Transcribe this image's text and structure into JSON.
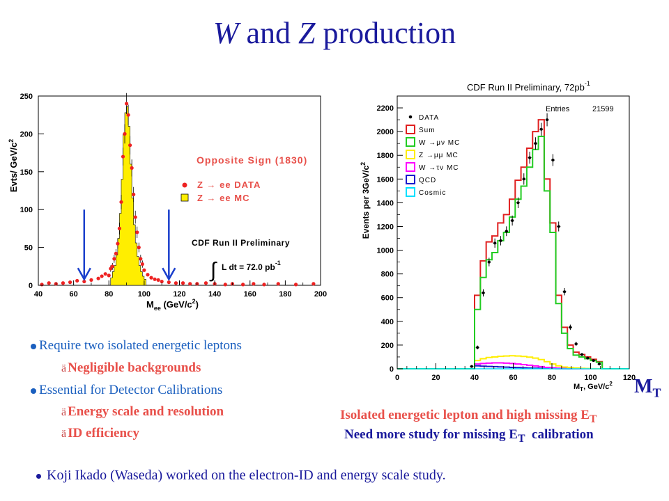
{
  "slide": {
    "title_italic_1": "W",
    "title_mid": " and ",
    "title_italic_2": "Z",
    "title_end": " production"
  },
  "bullets": {
    "b1": "Require two isolated energetic leptons",
    "b1_sub": "Negligible backgrounds",
    "b2": "Essential for Detector Calibrations",
    "b2_sub1": "Energy scale and resolution",
    "b2_sub2": "ID efficiency",
    "sub_glyph": "ä"
  },
  "right_notes": {
    "line1": "Isolated energetic lepton and high missing E",
    "line1_sub": "T",
    "line2a": "Need more study for missing E",
    "line2_sub": "T",
    "line2b": "  calibration",
    "mt_main": "M",
    "mt_sub": "T"
  },
  "footer": "Koji Ikado (Waseda) worked on the electron-ID and energy scale study.",
  "colors": {
    "blue": "#1a1a9c",
    "lightblue": "#1a5fbf",
    "red": "#e8504a",
    "yellow": "#ffee00",
    "arrow": "#1a3fcc"
  },
  "chart_data": [
    {
      "type": "bar",
      "ylabel": "Evts/ GeV/c",
      "ylabel_sup": "2",
      "xlabel_main": "M",
      "xlabel_sub": "ee",
      "xlabel_rest": " (GeV/c",
      "xlabel_sup": "2",
      "xlabel_end": ")",
      "xlim": [
        40,
        200
      ],
      "ylim": [
        0,
        250
      ],
      "xticks": [
        40,
        60,
        80,
        100,
        120,
        140,
        160,
        180,
        200
      ],
      "yticks": [
        0,
        50,
        100,
        150,
        200,
        250
      ],
      "legend_title": "Opposite Sign (1830)",
      "legend": [
        {
          "name": "Z → ee DATA",
          "marker": "red-dot"
        },
        {
          "name": "Z → ee  MC",
          "marker": "yellow-box"
        }
      ],
      "annot1": "CDF Run II Preliminary",
      "annot2_int": "∫",
      "annot2": "L dt = 72.0 pb",
      "annot2_sup": "-1",
      "arrows_at_x": [
        66,
        114
      ],
      "mc_hist": {
        "bin_width": 1,
        "x": [
          81,
          82,
          83,
          84,
          85,
          86,
          87,
          88,
          89,
          90,
          91,
          92,
          93,
          94,
          95,
          96,
          97,
          98,
          99,
          100
        ],
        "values": [
          10,
          18,
          26,
          40,
          62,
          95,
          140,
          200,
          228,
          236,
          210,
          160,
          115,
          80,
          56,
          38,
          26,
          18,
          12,
          8
        ]
      },
      "data_points": {
        "x": [
          42,
          46,
          50,
          54,
          58,
          62,
          66,
          70,
          74,
          76,
          78,
          80,
          81,
          82,
          83,
          84,
          85,
          86,
          87,
          88,
          89,
          90,
          91,
          92,
          93,
          94,
          95,
          96,
          97,
          98,
          99,
          100,
          102,
          104,
          106,
          108,
          110,
          114,
          118,
          122,
          126,
          130,
          135,
          140,
          146,
          150,
          156,
          162,
          168,
          176,
          186,
          196
        ],
        "values": [
          1,
          3,
          2,
          3,
          4,
          6,
          5,
          7,
          9,
          12,
          15,
          13,
          22,
          25,
          35,
          42,
          55,
          75,
          110,
          170,
          200,
          240,
          225,
          185,
          155,
          120,
          90,
          70,
          50,
          35,
          28,
          20,
          14,
          10,
          8,
          7,
          5,
          4,
          3,
          3,
          2,
          2,
          3,
          2,
          1,
          2,
          1,
          2,
          1,
          2,
          1,
          2
        ]
      }
    },
    {
      "type": "bar",
      "title": "CDF Run II Preliminary, 72pb",
      "title_sup": "-1",
      "ylabel": "Events per 3GeV/c",
      "ylabel_sup": "2",
      "xlabel": "M",
      "xlabel_sub": "T",
      "xlabel_rest": ", GeV/c",
      "xlabel_sup": "2",
      "stats_label": "Entries",
      "stats_value": "21599",
      "xlim": [
        0,
        120
      ],
      "ylim": [
        0,
        2300
      ],
      "xticks": [
        0,
        20,
        40,
        60,
        80,
        100,
        120
      ],
      "yticks": [
        0,
        200,
        400,
        600,
        800,
        1000,
        1200,
        1400,
        1600,
        1800,
        2000,
        2200
      ],
      "legend": [
        {
          "name": "DATA",
          "color": "#000000",
          "marker": "dot"
        },
        {
          "name": "Sum",
          "color": "#e02020",
          "marker": "box"
        },
        {
          "name": "W →μν MC",
          "color": "#22cc22",
          "marker": "box"
        },
        {
          "name": "Z →μμ MC",
          "color": "#ffee00",
          "marker": "box"
        },
        {
          "name": "W →τν MC",
          "color": "#ff00ff",
          "marker": "box"
        },
        {
          "name": "QCD",
          "color": "#1a1acc",
          "marker": "box"
        },
        {
          "name": "Cosmic",
          "color": "#00e0ff",
          "marker": "box"
        }
      ],
      "bin_edges": [
        40,
        43,
        46,
        49,
        52,
        55,
        58,
        61,
        64,
        67,
        70,
        73,
        76,
        79,
        82,
        85,
        88,
        91,
        94,
        97,
        100,
        103,
        106
      ],
      "series": [
        {
          "name": "Sum",
          "values": [
            620,
            910,
            1070,
            1120,
            1230,
            1300,
            1430,
            1590,
            1700,
            1860,
            2000,
            2100,
            1600,
            1230,
            620,
            350,
            200,
            140,
            120,
            100,
            80,
            60
          ]
        },
        {
          "name": "W →μν MC",
          "values": [
            500,
            770,
            920,
            980,
            1080,
            1150,
            1280,
            1430,
            1540,
            1700,
            1850,
            1960,
            1500,
            1150,
            550,
            300,
            170,
            115,
            100,
            85,
            70,
            55
          ]
        },
        {
          "name": "Z →μμ MC",
          "values": [
            70,
            85,
            95,
            100,
            105,
            108,
            110,
            108,
            104,
            98,
            90,
            78,
            60,
            40,
            25,
            15,
            10,
            6,
            4,
            2,
            1,
            0
          ]
        },
        {
          "name": "W →τν MC",
          "values": [
            40,
            45,
            48,
            50,
            50,
            48,
            45,
            40,
            35,
            30,
            24,
            18,
            12,
            8,
            5,
            3,
            2,
            1,
            0,
            0,
            0,
            0
          ]
        },
        {
          "name": "QCD",
          "values": [
            25,
            22,
            20,
            18,
            16,
            14,
            12,
            10,
            8,
            6,
            5,
            4,
            3,
            2,
            1,
            1,
            0,
            0,
            0,
            0,
            0,
            0
          ]
        }
      ],
      "data_points": {
        "x": [
          38.5,
          41.5,
          44.5,
          47.5,
          50.5,
          53.5,
          56.5,
          59.5,
          62.5,
          65.5,
          68.5,
          71.5,
          74.5,
          77.5,
          80.5,
          83.5,
          86.5,
          89.5,
          92.5,
          95.5,
          98.5,
          101.5,
          104.5
        ],
        "values": [
          20,
          180,
          640,
          900,
          1060,
          1080,
          1160,
          1250,
          1400,
          1600,
          1780,
          1900,
          2020,
          2100,
          1760,
          1200,
          650,
          350,
          210,
          120,
          90,
          70,
          40
        ]
      }
    }
  ]
}
